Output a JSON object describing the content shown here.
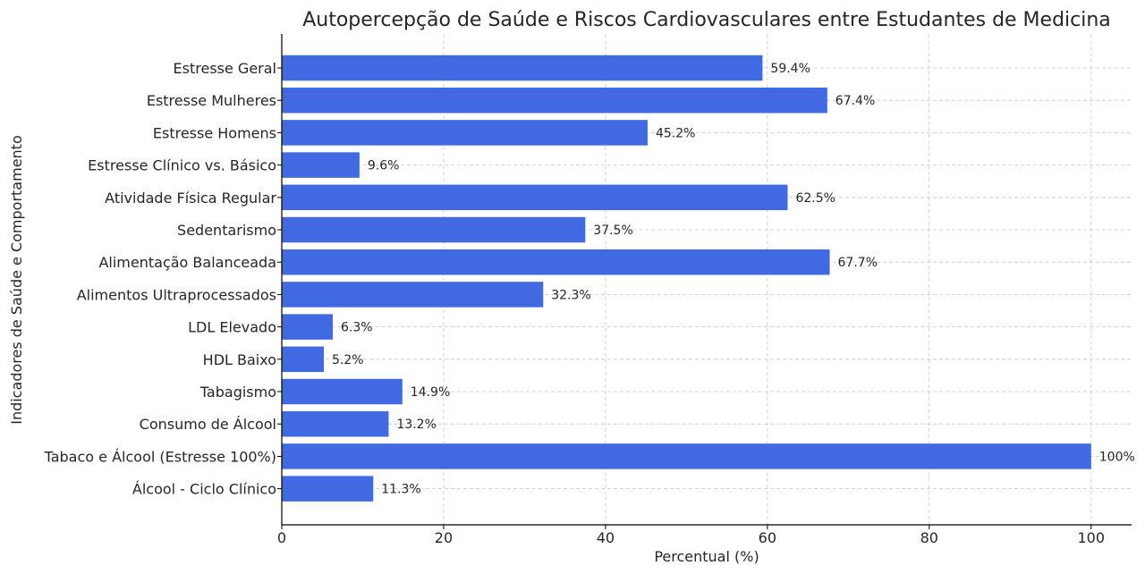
{
  "chart_data": {
    "type": "bar",
    "orientation": "horizontal",
    "title": "Autopercepção de Saúde e Riscos Cardiovasculares entre Estudantes de Medicina",
    "xlabel": "Percentual (%)",
    "ylabel": "Indicadores de Saúde e Comportamento",
    "xlim": [
      0,
      105
    ],
    "xticks": [
      0,
      20,
      40,
      60,
      80,
      100
    ],
    "grid": true,
    "bar_color": "#4169E1",
    "categories": [
      "Estresse Geral",
      "Estresse Mulheres",
      "Estresse Homens",
      "Estresse Clínico vs. Básico",
      "Atividade Física Regular",
      "Sedentarismo",
      "Alimentação Balanceada",
      "Alimentos Ultraprocessados",
      "LDL Elevado",
      "HDL Baixo",
      "Tabagismo",
      "Consumo de Álcool",
      "Tabaco e Álcool (Estresse 100%)",
      "Álcool - Ciclo Clínico"
    ],
    "values": [
      59.4,
      67.4,
      45.2,
      9.6,
      62.5,
      37.5,
      67.7,
      32.3,
      6.3,
      5.2,
      14.9,
      13.2,
      100,
      11.3
    ],
    "value_labels": [
      "59.4%",
      "67.4%",
      "45.2%",
      "9.6%",
      "62.5%",
      "37.5%",
      "67.7%",
      "32.3%",
      "6.3%",
      "5.2%",
      "14.9%",
      "13.2%",
      "100%",
      "11.3%"
    ]
  }
}
